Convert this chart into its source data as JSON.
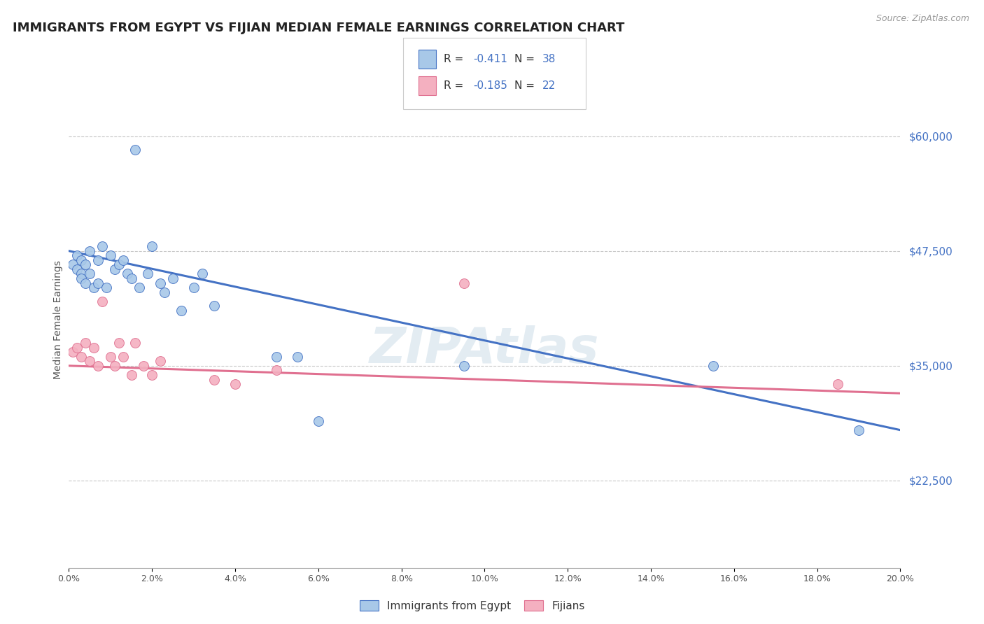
{
  "title": "IMMIGRANTS FROM EGYPT VS FIJIAN MEDIAN FEMALE EARNINGS CORRELATION CHART",
  "source": "Source: ZipAtlas.com",
  "ylabel": "Median Female Earnings",
  "ylabel_ticks": [
    "$22,500",
    "$35,000",
    "$47,500",
    "$60,000"
  ],
  "ylabel_values": [
    22500,
    35000,
    47500,
    60000
  ],
  "xlim": [
    0.0,
    0.2
  ],
  "ylim": [
    13000,
    67000
  ],
  "blue_color": "#a8c8e8",
  "pink_color": "#f4b0c0",
  "blue_line_color": "#4472c4",
  "pink_line_color": "#e07090",
  "right_axis_color": "#4472c4",
  "legend_bottom_blue": "Immigrants from Egypt",
  "legend_bottom_pink": "Fijians",
  "watermark": "ZIPAtlas",
  "grid_color": "#c8c8c8",
  "title_color": "#222222",
  "title_fontsize": 13,
  "blue_x": [
    0.001,
    0.002,
    0.002,
    0.003,
    0.003,
    0.003,
    0.004,
    0.004,
    0.005,
    0.005,
    0.006,
    0.007,
    0.007,
    0.008,
    0.009,
    0.01,
    0.011,
    0.012,
    0.013,
    0.014,
    0.015,
    0.016,
    0.017,
    0.019,
    0.02,
    0.022,
    0.023,
    0.025,
    0.027,
    0.03,
    0.032,
    0.035,
    0.05,
    0.055,
    0.06,
    0.095,
    0.155,
    0.19
  ],
  "blue_y": [
    46000,
    47000,
    45500,
    46500,
    45000,
    44500,
    46000,
    44000,
    47500,
    45000,
    43500,
    46500,
    44000,
    48000,
    43500,
    47000,
    45500,
    46000,
    46500,
    45000,
    44500,
    58500,
    43500,
    45000,
    48000,
    44000,
    43000,
    44500,
    41000,
    43500,
    45000,
    41500,
    36000,
    36000,
    29000,
    35000,
    35000,
    28000
  ],
  "pink_x": [
    0.001,
    0.002,
    0.003,
    0.004,
    0.005,
    0.006,
    0.007,
    0.008,
    0.01,
    0.011,
    0.012,
    0.013,
    0.015,
    0.016,
    0.018,
    0.02,
    0.022,
    0.035,
    0.04,
    0.05,
    0.095,
    0.185
  ],
  "pink_y": [
    36500,
    37000,
    36000,
    37500,
    35500,
    37000,
    35000,
    42000,
    36000,
    35000,
    37500,
    36000,
    34000,
    37500,
    35000,
    34000,
    35500,
    33500,
    33000,
    34500,
    44000,
    33000
  ]
}
